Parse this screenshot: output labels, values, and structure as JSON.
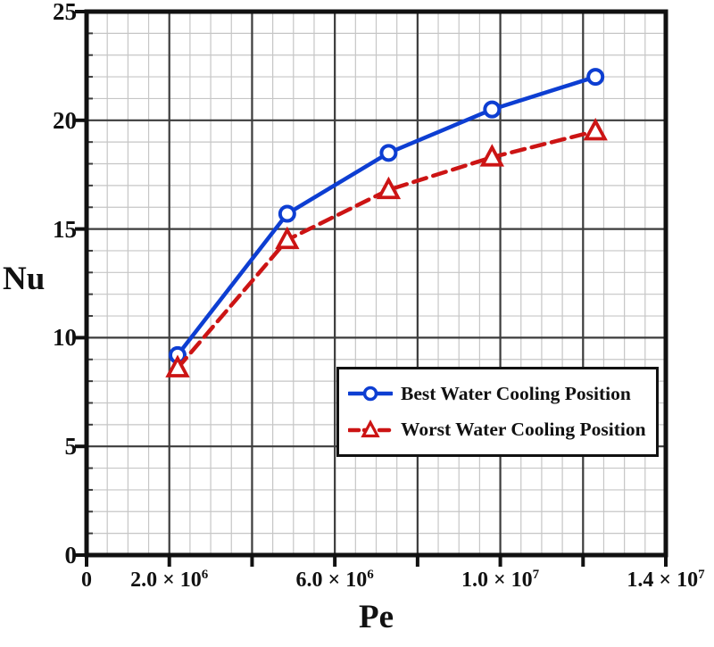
{
  "chart_data": {
    "type": "line",
    "title": "",
    "xlabel": "Pe",
    "ylabel": "Nu",
    "xlim": [
      0,
      14000000
    ],
    "ylim": [
      0,
      25
    ],
    "x_major_step": 2000000,
    "x_minor_step": 500000,
    "y_major_step": 5,
    "y_minor_step": 1,
    "grid": "major and minor gridlines on",
    "x_tick_labels": [
      {
        "value": 0,
        "text": "0"
      },
      {
        "value": 2000000,
        "text": "2.0 × 10^6"
      },
      {
        "value": 6000000,
        "text": "6.0 × 10^6"
      },
      {
        "value": 10000000,
        "text": "1.0 × 10^7"
      },
      {
        "value": 14000000,
        "text": "1.4 × 10^7"
      }
    ],
    "y_tick_labels": [
      {
        "value": 0,
        "text": "0"
      },
      {
        "value": 5,
        "text": "5"
      },
      {
        "value": 10,
        "text": "10"
      },
      {
        "value": 15,
        "text": "15"
      },
      {
        "value": 20,
        "text": "20"
      },
      {
        "value": 25,
        "text": "25"
      }
    ],
    "legend_position": "inside lower-right, boxed",
    "series": [
      {
        "name": "Best Water Cooling Position",
        "color": "#0d3ed2",
        "line_style": "solid",
        "marker": "open-circle",
        "x": [
          2200000,
          4850000,
          7300000,
          9800000,
          12300000
        ],
        "y": [
          9.2,
          15.7,
          18.5,
          20.5,
          22.0
        ]
      },
      {
        "name": "Worst Water Cooling Position",
        "color": "#cc1414",
        "line_style": "dashed",
        "marker": "open-triangle",
        "x": [
          2200000,
          4850000,
          7300000,
          9800000,
          12300000
        ],
        "y": [
          8.6,
          14.5,
          16.8,
          18.3,
          19.5
        ]
      }
    ],
    "style": {
      "background": "#ffffff",
      "grid_minor_color": "#c6c6c6",
      "grid_major_color": "#3c3c3c",
      "axis_color": "#111111",
      "text_color": "#111111",
      "legend_border_color": "#111111"
    }
  }
}
